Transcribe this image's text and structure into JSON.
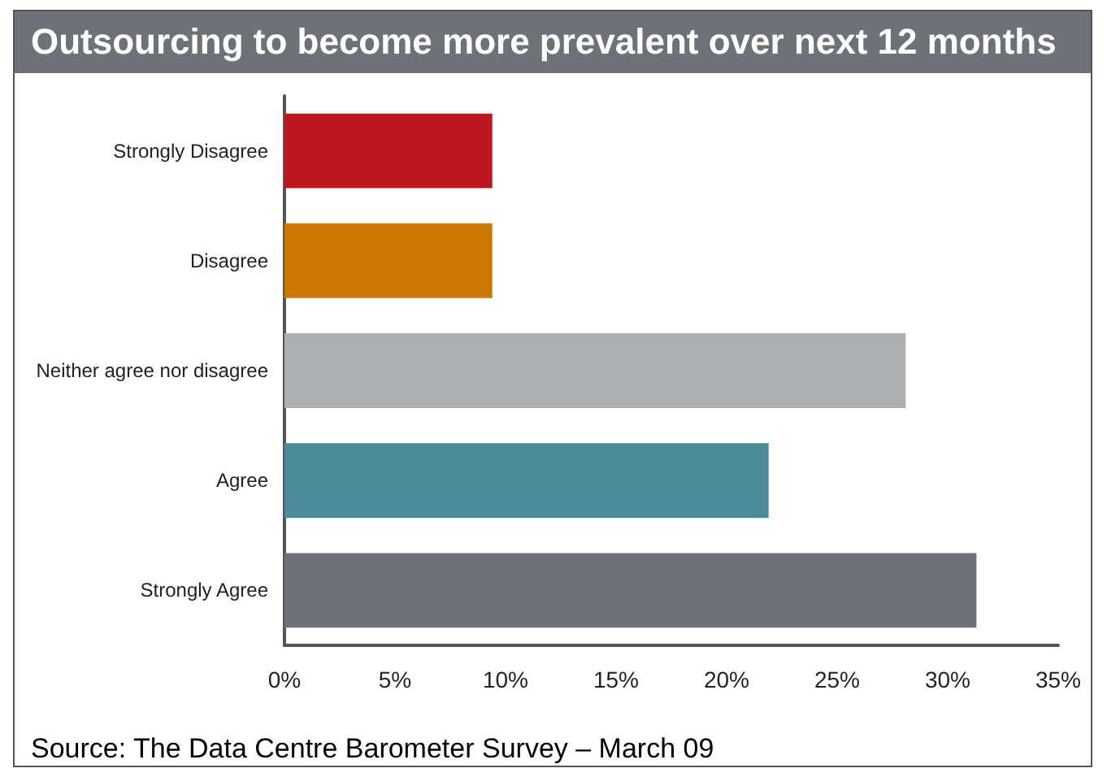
{
  "chart_data": {
    "type": "bar",
    "orientation": "horizontal",
    "title": "Outsourcing to become more prevalent over next 12 months",
    "categories": [
      "Strongly Disagree",
      "Disagree",
      "Neither agree nor disagree",
      "Agree",
      "Strongly Agree"
    ],
    "values": [
      9.4,
      9.4,
      28.1,
      21.9,
      31.3
    ],
    "colors": [
      "#be161e",
      "#cb7700",
      "#aeafb1",
      "#4a8b9a",
      "#6e7175"
    ],
    "xlim": [
      0,
      35
    ],
    "xticks": [
      {
        "value": 0,
        "label": "0%"
      },
      {
        "value": 5,
        "label": "5%"
      },
      {
        "value": 10,
        "label": "10%"
      },
      {
        "value": 15,
        "label": "15%"
      },
      {
        "value": 20,
        "label": "20%"
      },
      {
        "value": 25,
        "label": "25%"
      },
      {
        "value": 30,
        "label": "30%"
      },
      {
        "value": 35,
        "label": "35%"
      }
    ],
    "grid": false,
    "annotations": [
      "Source: The Data Centre Barometer Survey – March 09"
    ]
  }
}
